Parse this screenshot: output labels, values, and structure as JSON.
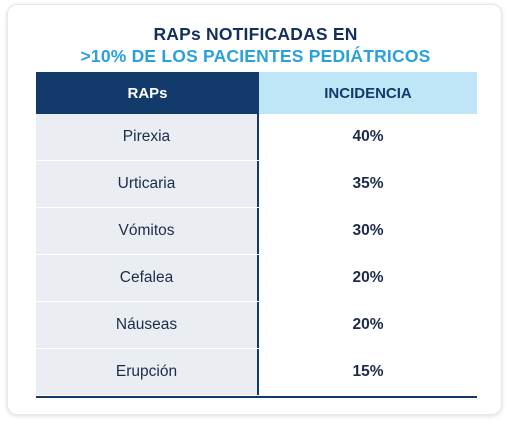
{
  "title": {
    "line1": "RAPs NOTIFICADAS EN",
    "line2": ">10% DE LOS PACIENTES PEDIÁTRICOS"
  },
  "table": {
    "headers": [
      "RAPs",
      "INCIDENCIA"
    ],
    "rows": [
      {
        "rap": "Pirexia",
        "incidencia": "40%"
      },
      {
        "rap": "Urticaria",
        "incidencia": "35%"
      },
      {
        "rap": "Vómitos",
        "incidencia": "30%"
      },
      {
        "rap": "Cefalea",
        "incidencia": "20%"
      },
      {
        "rap": "Náuseas",
        "incidencia": "20%"
      },
      {
        "rap": "Erupción",
        "incidencia": "15%"
      }
    ]
  },
  "colors": {
    "title_dark": "#152f5c",
    "title_accent": "#2aa1dc",
    "header_dark": "#123a6b",
    "header_light": "#bfe6f6",
    "row_shade": "#eaedf2"
  }
}
